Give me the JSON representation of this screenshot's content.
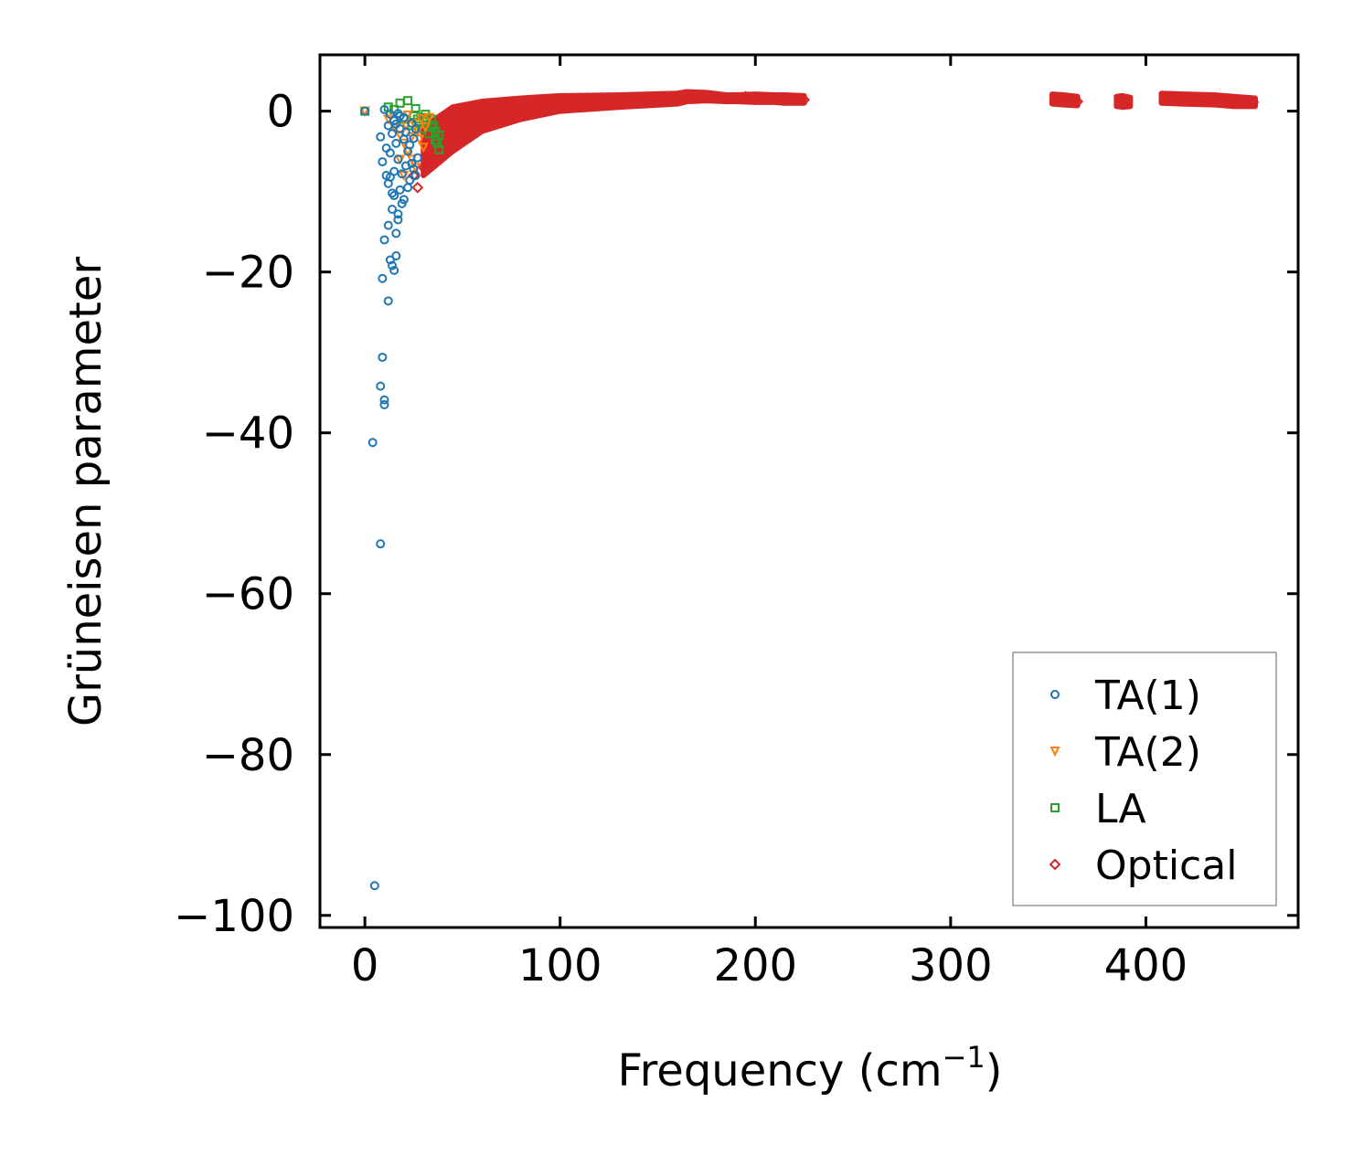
{
  "chart_data": {
    "type": "scatter",
    "xlabel": "Frequency (cm",
    "xlabel_sup": "−1",
    "xlabel_end": ")",
    "ylabel": "Grüneisen parameter",
    "xlim": [
      -23,
      478
    ],
    "ylim": [
      -101.5,
      7
    ],
    "xticks": [
      0,
      100,
      200,
      300,
      400
    ],
    "yticks": [
      0,
      -20,
      -40,
      -60,
      -80,
      -100
    ],
    "ytick_labels": [
      "0",
      "−20",
      "−40",
      "−60",
      "−80",
      "−100"
    ],
    "xtick_labels": [
      "0",
      "100",
      "200",
      "300",
      "400"
    ],
    "legend_position": "lower-right",
    "series": [
      {
        "name": "TA(1)",
        "marker": "circle",
        "color": "#1f77b4",
        "points": [
          [
            0,
            0
          ],
          [
            5,
            -96.3
          ],
          [
            8,
            -53.8
          ],
          [
            4,
            -41.2
          ],
          [
            10,
            -36.5
          ],
          [
            10,
            -35.9
          ],
          [
            8,
            -34.2
          ],
          [
            9,
            -30.6
          ],
          [
            12,
            -23.6
          ],
          [
            9,
            -20.8
          ],
          [
            15,
            -19.8
          ],
          [
            14,
            -19.2
          ],
          [
            16,
            -18
          ],
          [
            13,
            -18.5
          ],
          [
            10,
            -16
          ],
          [
            16,
            -15.2
          ],
          [
            12,
            -14.2
          ],
          [
            17,
            -13.5
          ],
          [
            17,
            -12.8
          ],
          [
            14,
            -12.2
          ],
          [
            19,
            -11.5
          ],
          [
            15,
            -10.5
          ],
          [
            14,
            -10.2
          ],
          [
            18,
            -9.8
          ],
          [
            12,
            -9
          ],
          [
            13,
            -8.2
          ],
          [
            11,
            -8
          ],
          [
            15,
            -7.5
          ],
          [
            9,
            -6.3
          ],
          [
            17,
            -6
          ],
          [
            13,
            -5.2
          ],
          [
            11,
            -4.6
          ],
          [
            16,
            -4
          ],
          [
            20,
            -3.5
          ],
          [
            8,
            -3.2
          ],
          [
            14,
            -2.8
          ],
          [
            18,
            -2.2
          ],
          [
            12,
            -1.8
          ],
          [
            15,
            -1.2
          ],
          [
            20,
            -0.8
          ],
          [
            17,
            -0.3
          ],
          [
            10,
            0.2
          ],
          [
            22,
            -5
          ],
          [
            24,
            -6.5
          ],
          [
            25,
            -7.2
          ],
          [
            26,
            -8
          ],
          [
            23,
            -4.2
          ],
          [
            21,
            -2.6
          ],
          [
            25,
            -3.4
          ],
          [
            27,
            -5.8
          ],
          [
            19,
            -7.8
          ],
          [
            22,
            -9.5
          ],
          [
            20,
            -11
          ],
          [
            24,
            -1.5
          ],
          [
            26,
            -2.2
          ],
          [
            18,
            -0.6
          ],
          [
            13,
            -0.4
          ],
          [
            16,
            -1.6
          ],
          [
            21,
            -6.8
          ],
          [
            23,
            -8.6
          ]
        ]
      },
      {
        "name": "TA(2)",
        "marker": "triangle-down",
        "color": "#ff7f0e",
        "points": [
          [
            0,
            0
          ],
          [
            12,
            -1
          ],
          [
            15,
            -2
          ],
          [
            18,
            -3
          ],
          [
            20,
            -4
          ],
          [
            22,
            -5
          ],
          [
            24,
            -6
          ],
          [
            25,
            -1.5
          ],
          [
            27,
            -2.5
          ],
          [
            28,
            -3.5
          ],
          [
            30,
            -4.5
          ],
          [
            22,
            -0.5
          ],
          [
            26,
            -7
          ],
          [
            20,
            -8
          ],
          [
            18,
            -6
          ],
          [
            29,
            -1
          ],
          [
            31,
            -2
          ],
          [
            24,
            -3.2
          ],
          [
            21,
            -1.8
          ],
          [
            33,
            -0.8
          ]
        ]
      },
      {
        "name": "LA",
        "marker": "square",
        "color": "#2ca02c",
        "points": [
          [
            0,
            0
          ],
          [
            12,
            0.5
          ],
          [
            15,
            0.2
          ],
          [
            18,
            1
          ],
          [
            22,
            1.3
          ],
          [
            20,
            -1
          ],
          [
            25,
            -0.5
          ],
          [
            28,
            -1.5
          ],
          [
            30,
            -0.8
          ],
          [
            32,
            -1.2
          ],
          [
            34,
            -2
          ],
          [
            36,
            -2.5
          ],
          [
            38,
            -3
          ],
          [
            37,
            -4
          ],
          [
            38,
            -4.8
          ],
          [
            35,
            -1.8
          ],
          [
            33,
            -2.8
          ],
          [
            31,
            -0.4
          ],
          [
            27,
            -1
          ],
          [
            26,
            0.3
          ],
          [
            29,
            -2.2
          ],
          [
            36,
            -3.6
          ],
          [
            34,
            -1
          ],
          [
            24,
            -1.8
          ]
        ]
      },
      {
        "name": "Optical",
        "marker": "diamond",
        "color": "#d62728",
        "points": [
          [
            25,
            -8
          ],
          [
            27,
            -9.5
          ],
          [
            30,
            -7
          ],
          [
            32,
            -6
          ],
          [
            35,
            -5
          ],
          [
            38,
            -4
          ],
          [
            40,
            -3
          ],
          [
            45,
            -2.5
          ],
          [
            50,
            -1.5
          ],
          [
            55,
            -1
          ],
          [
            60,
            -0.5
          ],
          [
            70,
            0
          ],
          [
            80,
            0.3
          ],
          [
            90,
            0.6
          ],
          [
            100,
            0.8
          ],
          [
            110,
            1
          ],
          [
            120,
            1.1
          ],
          [
            130,
            1.3
          ],
          [
            140,
            1.4
          ],
          [
            150,
            1.5
          ],
          [
            160,
            1.6
          ],
          [
            165,
            1.8
          ],
          [
            170,
            1.9
          ],
          [
            175,
            1.8
          ],
          [
            180,
            1.7
          ],
          [
            190,
            1.6
          ],
          [
            195,
            1.8
          ],
          [
            200,
            1.7
          ],
          [
            210,
            1.6
          ],
          [
            215,
            1.5
          ],
          [
            220,
            1.5
          ],
          [
            225,
            1.4
          ],
          [
            355,
            1.5
          ],
          [
            360,
            1.3
          ],
          [
            365,
            1.2
          ],
          [
            387,
            1.1
          ],
          [
            390,
            1.2
          ],
          [
            410,
            1.6
          ],
          [
            420,
            1.5
          ],
          [
            430,
            1.4
          ],
          [
            440,
            1.3
          ],
          [
            450,
            1.2
          ],
          [
            455,
            1.1
          ]
        ],
        "bands": [
          {
            "x": [
              30,
              45,
              60,
              80,
              100,
              130,
              160,
              165
            ],
            "y_top": [
              -2,
              0.5,
              1.2,
              1.6,
              1.9,
              2.0,
              2.2,
              2.4
            ],
            "y_bottom": [
              -8,
              -5,
              -2.5,
              -1,
              0,
              0.5,
              0.9,
              1.2
            ]
          },
          {
            "x": [
              165,
              175,
              185,
              190,
              200,
              210,
              215,
              225
            ],
            "y_top": [
              2.4,
              2.3,
              2.0,
              2.0,
              2.1,
              2.0,
              2.0,
              1.9
            ],
            "y_bottom": [
              1.2,
              1.3,
              1.2,
              1.2,
              1.1,
              1.1,
              1.0,
              1.0
            ]
          },
          {
            "x": [
              352,
              358,
              365
            ],
            "y_top": [
              2.1,
              2.0,
              1.8
            ],
            "y_bottom": [
              0.9,
              0.8,
              0.7
            ]
          },
          {
            "x": [
              385,
              388,
              392
            ],
            "y_top": [
              1.8,
              1.9,
              1.7
            ],
            "y_bottom": [
              0.6,
              0.5,
              0.6
            ]
          },
          {
            "x": [
              408,
              420,
              435,
              445,
              456
            ],
            "y_top": [
              2.2,
              2.1,
              2.0,
              1.8,
              1.6
            ],
            "y_bottom": [
              1.0,
              0.9,
              0.8,
              0.6,
              0.6
            ]
          }
        ]
      }
    ]
  }
}
